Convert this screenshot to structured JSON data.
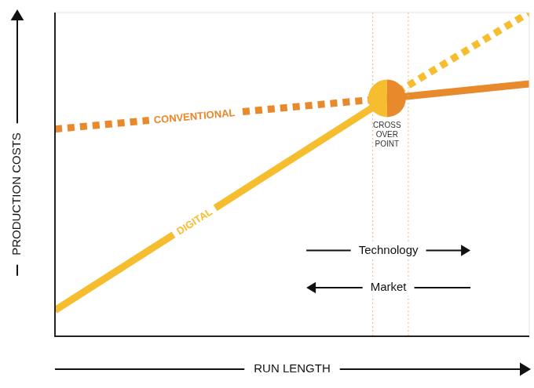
{
  "chart_data": {
    "type": "line",
    "xlabel": "RUN LENGTH",
    "ylabel": "PRODUCTION COSTS",
    "xlim": [
      0,
      100
    ],
    "ylim": [
      0,
      100
    ],
    "tick_labels": false,
    "grid": false,
    "series": [
      {
        "name": "CONVENTIONAL",
        "color": "#e8892b",
        "line_style": "dotted",
        "x": [
          0,
          70
        ],
        "values": [
          64,
          73.5
        ]
      },
      {
        "name": "CONVENTIONAL",
        "color": "#e8892b",
        "line_style": "solid",
        "x": [
          70,
          100
        ],
        "values": [
          73.5,
          78
        ]
      },
      {
        "name": "DIGITAL",
        "color": "#f6be2f",
        "line_style": "solid",
        "x": [
          0,
          70
        ],
        "values": [
          8,
          73.5
        ]
      },
      {
        "name": "DIGITAL",
        "color": "#f6be2f",
        "line_style": "dotted",
        "x": [
          70,
          100
        ],
        "values": [
          73.5,
          100
        ]
      }
    ],
    "crossover": {
      "label": "CROSS OVER POINT",
      "x": 70,
      "y": 73.5,
      "range": [
        67,
        74.5
      ]
    },
    "arrows": [
      {
        "label": "Technology",
        "from": 53,
        "to": 87.6,
        "y": 26.5
      },
      {
        "label": "Market",
        "from": 87.6,
        "to": 53,
        "y": 15
      }
    ]
  }
}
